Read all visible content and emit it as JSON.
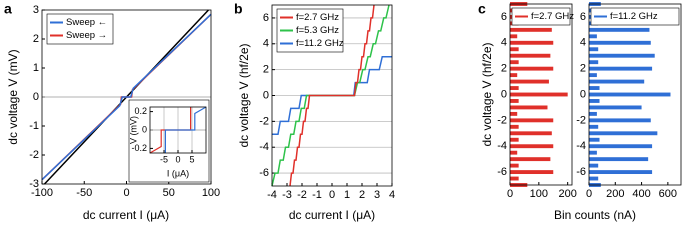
{
  "chart_data": [
    {
      "type": "line",
      "panel_label": "a",
      "xlabel": "dc current I (μA)",
      "ylabel": "dc voltage V (mV)",
      "xlim": [
        -100,
        100
      ],
      "ylim": [
        -3,
        3
      ],
      "xticks": [
        -100,
        -50,
        0,
        50,
        100
      ],
      "yticks": [
        -3,
        -2,
        -1,
        0,
        1,
        2,
        3
      ],
      "zeroline": true,
      "legend": "upper left",
      "series": [
        {
          "name": "Sweep ←",
          "color": "#2f6fd6",
          "x": [
            -100,
            -8,
            -5,
            5,
            8,
            100
          ],
          "y": [
            -2.85,
            -0.3,
            0,
            0,
            0.3,
            2.85
          ]
        },
        {
          "name": "Sweep →",
          "color": "#e0302a",
          "x": [
            -100,
            -7,
            -6,
            6,
            7,
            100
          ],
          "y": [
            -2.85,
            -0.25,
            0,
            0,
            0.25,
            2.85
          ]
        },
        {
          "color": "#000000",
          "x": [
            -97,
            97
          ],
          "y": [
            -3,
            3
          ]
        }
      ],
      "inset": {
        "type": "line",
        "xlabel": "I (μA)",
        "ylabel": "V (mV)",
        "xlim": [
          -10,
          10
        ],
        "ylim": [
          -0.25,
          0.25
        ],
        "xticks": [
          -5,
          0,
          5
        ],
        "yticks": [
          -0.2,
          0,
          0.2
        ],
        "xgrid": true,
        "zeroline": true,
        "series": [
          {
            "color": "#2f6fd6",
            "x": [
              -4.5,
              -4.5,
              6,
              6,
              10
            ],
            "y": [
              -0.25,
              0,
              0,
              0.18,
              0.25
            ]
          },
          {
            "color": "#e0302a",
            "x": [
              -10,
              -6,
              -6,
              4.5,
              4.5
            ],
            "y": [
              -0.25,
              -0.18,
              0,
              0,
              0.25
            ]
          }
        ]
      }
    },
    {
      "type": "line",
      "panel_label": "b",
      "xlabel": "dc current I (μA)",
      "ylabel": "dc voltage V (hf/2e)",
      "xlim": [
        -4,
        4
      ],
      "ylim": [
        -7,
        7
      ],
      "xticks": [
        -4,
        -3,
        -2,
        -1,
        0,
        1,
        2,
        3,
        4
      ],
      "yticks": [
        -6,
        -4,
        -2,
        0,
        2,
        4,
        6
      ],
      "grid": true,
      "legend": "upper left",
      "series": [
        {
          "name": "f=2.7 GHz",
          "color": "#e0302a",
          "x": [
            -2.8,
            -2.7,
            -2.6,
            -2.5,
            -2.4,
            -2.3,
            -2.2,
            -2.1,
            -2.0,
            -1.9,
            -1.8,
            -1.7,
            -1.6,
            -1.5,
            1.5,
            1.6,
            1.7,
            1.8,
            1.9,
            2.0,
            2.1,
            2.2,
            2.3,
            2.4,
            2.5,
            2.6,
            2.7,
            2.8
          ],
          "y": [
            -7,
            -6,
            -6,
            -5,
            -5,
            -4,
            -4,
            -3,
            -3,
            -2,
            -2,
            -1,
            -1,
            0,
            0,
            1,
            1,
            2,
            2,
            3,
            3,
            4,
            4,
            5,
            5,
            6,
            6,
            7
          ]
        },
        {
          "name": "f=5.3 GHz",
          "color": "#2ec24a",
          "x": [
            -4,
            -3.8,
            -3.6,
            -3.45,
            -3.25,
            -3.1,
            -2.9,
            -2.75,
            -2.55,
            -2.4,
            -2.2,
            -2.05,
            -1.85,
            -1.7,
            -1.5,
            1.5,
            1.7,
            1.85,
            2.05,
            2.2,
            2.4,
            2.55,
            2.75,
            2.9,
            3.1,
            3.25,
            3.45,
            3.6,
            3.8
          ],
          "y": [
            -7,
            -6,
            -6,
            -5,
            -5,
            -4,
            -4,
            -3,
            -3,
            -2,
            -2,
            -1,
            -1,
            0,
            0,
            0,
            1,
            1,
            2,
            2,
            3,
            3,
            4,
            4,
            5,
            5,
            6,
            6,
            7
          ]
        },
        {
          "name": "f=11.2 GHz",
          "color": "#2f6fd6",
          "x": [
            -4,
            -3.6,
            -3.45,
            -2.9,
            -2.75,
            -2.2,
            -2.05,
            -1.5,
            1.45,
            1.55,
            2.35,
            2.5,
            3.15,
            3.35,
            4
          ],
          "y": [
            -3,
            -3,
            -2,
            -2,
            -1,
            -1,
            0,
            0,
            0,
            1,
            1,
            2,
            2,
            3,
            3
          ]
        }
      ]
    },
    {
      "type": "bar",
      "orientation": "horizontal",
      "panel_label": "c",
      "ylabel": "dc voltage V (hf/2e)",
      "xlabel": "Bin counts (nA)",
      "xlim": [
        0,
        215
      ],
      "ylim": [
        -7,
        7
      ],
      "xticks": [
        0,
        100,
        200
      ],
      "yticks": [
        -6,
        -4,
        -2,
        0,
        2,
        4,
        6
      ],
      "legend": "upper left",
      "y": [
        -7,
        -6.5,
        -6,
        -5.5,
        -5,
        -4.5,
        -4,
        -3.5,
        -3,
        -2.5,
        -2,
        -1.5,
        -1,
        -0.5,
        0,
        0.5,
        1,
        1.5,
        2,
        2.5,
        3,
        3.5,
        4,
        4.5,
        5,
        5.5,
        6,
        6.5,
        7
      ],
      "series": [
        {
          "name": "f=2.7 GHz",
          "color": "#e0302a",
          "values": [
            60,
            30,
            150,
            30,
            140,
            25,
            150,
            30,
            145,
            30,
            150,
            25,
            130,
            30,
            200,
            30,
            135,
            25,
            150,
            30,
            140,
            30,
            150,
            25,
            145,
            30,
            150,
            30,
            60
          ]
        }
      ]
    },
    {
      "type": "bar",
      "orientation": "horizontal",
      "xlim": [
        0,
        700
      ],
      "ylim": [
        -7,
        7
      ],
      "xticks": [
        0,
        200,
        400,
        600
      ],
      "yticks": [
        -6,
        -4,
        -2,
        0,
        2,
        4,
        6
      ],
      "legend": "upper left",
      "y": [
        -7,
        -6.5,
        -6,
        -5.5,
        -5,
        -4.5,
        -4,
        -3.5,
        -3,
        -2.5,
        -2,
        -1.5,
        -1,
        -0.5,
        0,
        0.5,
        1,
        1.5,
        2,
        2.5,
        3,
        3.5,
        4,
        4.5,
        5,
        5.5,
        6,
        6.5,
        7
      ],
      "series": [
        {
          "name": "f=11.2 GHz",
          "color": "#2f6fd6",
          "values": [
            90,
            70,
            480,
            70,
            450,
            60,
            480,
            80,
            520,
            70,
            470,
            60,
            400,
            80,
            620,
            80,
            420,
            60,
            480,
            70,
            500,
            70,
            470,
            60,
            460,
            70,
            520,
            70,
            90
          ]
        }
      ]
    }
  ]
}
